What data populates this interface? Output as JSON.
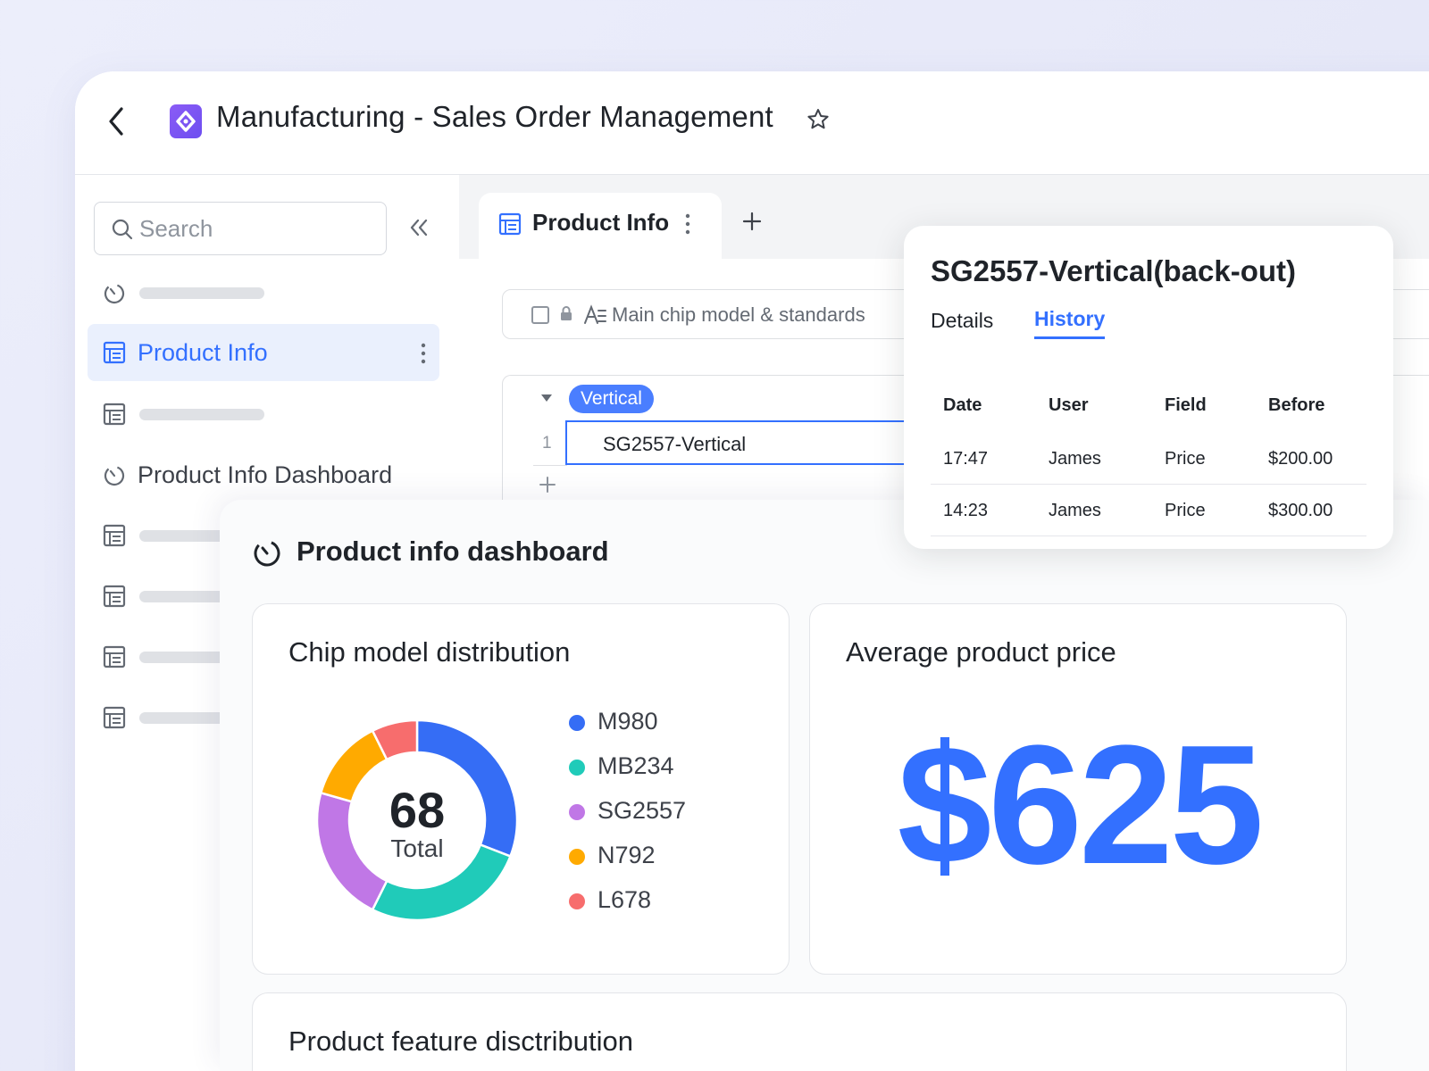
{
  "header": {
    "title": "Manufacturing - Sales Order Management"
  },
  "sidebar": {
    "search_placeholder": "Search",
    "items": [
      {
        "type": "dashboard",
        "label": ""
      },
      {
        "type": "table",
        "label": "Product Info",
        "active": true
      },
      {
        "type": "table",
        "label": ""
      },
      {
        "type": "dashboard",
        "label": "Product Info Dashboard"
      },
      {
        "type": "table",
        "label": ""
      },
      {
        "type": "table",
        "label": ""
      },
      {
        "type": "table",
        "label": ""
      },
      {
        "type": "table",
        "label": ""
      }
    ]
  },
  "tabs": {
    "active_label": "Product Info"
  },
  "grid": {
    "field_header": "Main chip model & standards",
    "group_label": "Vertical",
    "rows": [
      {
        "num": "1",
        "value": "SG2557-Vertical"
      }
    ]
  },
  "record_history": {
    "title": "SG2557-Vertical(back-out)",
    "tab_details": "Details",
    "tab_history": "History",
    "columns": [
      "Date",
      "User",
      "Field",
      "Before"
    ],
    "rows": [
      [
        "17:47",
        "James",
        "Price",
        "$200.00"
      ],
      [
        "14:23",
        "James",
        "Price",
        "$300.00"
      ]
    ]
  },
  "dashboard": {
    "title": "Product info dashboard",
    "donut_card": {
      "title": "Chip model distribution",
      "total": "68",
      "total_label": "Total"
    },
    "avg_card": {
      "title": "Average product price",
      "value": "$625"
    },
    "feature_card": {
      "title": "Product feature disctribution"
    }
  },
  "chart_data": {
    "type": "pie",
    "categories": [
      "M980",
      "MB234",
      "SG2557",
      "N792",
      "L678"
    ],
    "values": [
      21,
      18,
      15,
      9,
      5
    ],
    "colors": [
      "#356df5",
      "#20cbb9",
      "#c077e6",
      "#ffaa00",
      "#f76d6d"
    ],
    "title": "Chip model distribution",
    "legend": "right"
  },
  "colors": {
    "accent": "#3370ff",
    "logo": "#7c55f3"
  }
}
